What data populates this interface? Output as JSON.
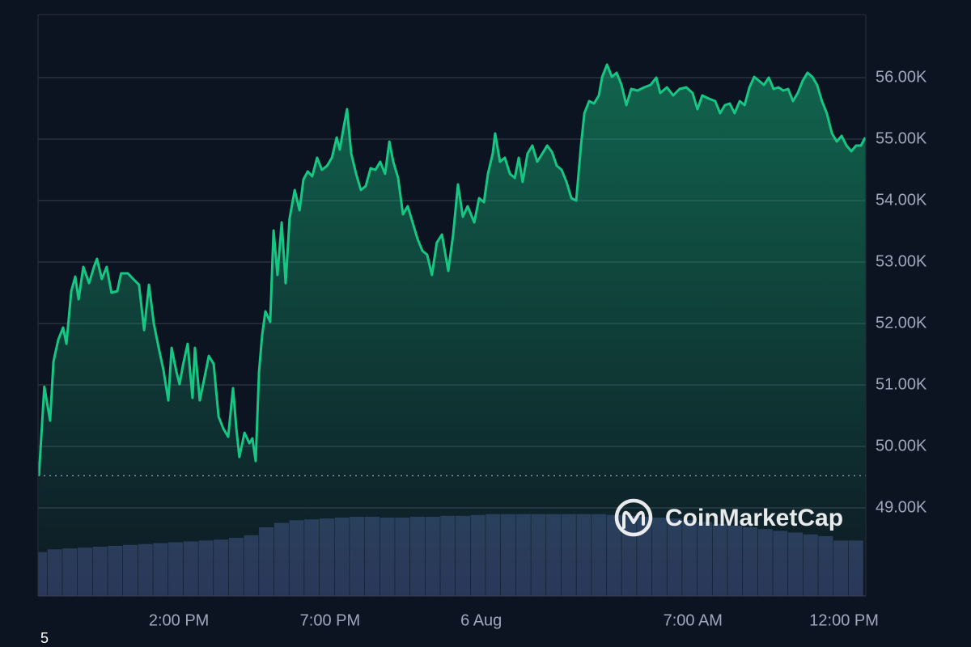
{
  "chart_data": {
    "type": "line",
    "x": [
      9.37,
      9.55,
      9.74,
      9.85,
      10.01,
      10.17,
      10.28,
      10.44,
      10.57,
      10.68,
      10.84,
      11.03,
      11.19,
      11.29,
      11.45,
      11.61,
      11.77,
      11.96,
      12.09,
      12.31,
      12.49,
      12.68,
      12.85,
      13.01,
      13.17,
      13.33,
      13.49,
      13.65,
      13.76,
      13.92,
      14.02,
      14.13,
      14.29,
      14.45,
      14.53,
      14.69,
      14.83,
      14.99,
      15.15,
      15.31,
      15.47,
      15.63,
      15.79,
      15.9,
      16.0,
      16.17,
      16.33,
      16.43,
      16.54,
      16.65,
      16.75,
      16.86,
      17.02,
      17.13,
      17.26,
      17.4,
      17.53,
      17.66,
      17.83,
      17.99,
      18.12,
      18.26,
      18.41,
      18.57,
      18.73,
      18.9,
      19.06,
      19.22,
      19.32,
      19.46,
      19.56,
      19.7,
      19.86,
      20.02,
      20.18,
      20.34,
      20.5,
      20.66,
      20.82,
      20.96,
      21.09,
      21.25,
      21.41,
      21.57,
      21.73,
      21.89,
      22.05,
      22.21,
      22.37,
      22.53,
      22.7,
      22.91,
      23.07,
      23.23,
      23.39,
      23.55,
      23.77,
      23.93,
      24.09,
      24.22,
      24.38,
      24.46,
      24.62,
      24.78,
      24.95,
      25.11,
      25.24,
      25.37,
      25.53,
      25.69,
      25.85,
      26.02,
      26.18,
      26.34,
      26.5,
      26.66,
      26.82,
      26.98,
      27.14,
      27.3,
      27.41,
      27.57,
      27.73,
      27.89,
      28.0,
      28.16,
      28.32,
      28.48,
      28.64,
      28.8,
      28.96,
      29.17,
      29.39,
      29.6,
      29.79,
      29.92,
      30.14,
      30.35,
      30.56,
      30.78,
      30.99,
      31.15,
      31.31,
      31.53,
      31.74,
      31.9,
      32.06,
      32.22,
      32.38,
      32.55,
      32.71,
      32.87,
      33.03,
      33.19,
      33.35,
      33.51,
      33.67,
      33.83,
      33.99,
      34.15,
      34.31,
      34.47,
      34.63,
      34.79,
      34.95,
      35.11,
      35.27,
      35.43,
      35.6,
      35.76,
      35.92,
      36.08,
      36.24,
      36.4,
      36.56,
      36.7
    ],
    "values": [
      49525,
      50973,
      50420,
      51380,
      51736,
      51934,
      51670,
      52526,
      52763,
      52394,
      52921,
      52657,
      52921,
      53052,
      52723,
      52921,
      52500,
      52526,
      52816,
      52816,
      52723,
      52630,
      51894,
      52630,
      51999,
      51604,
      51236,
      50749,
      51604,
      51210,
      51012,
      51315,
      51670,
      50789,
      51604,
      50749,
      51078,
      51473,
      51341,
      50486,
      50289,
      50157,
      50947,
      50289,
      49828,
      50223,
      50052,
      50131,
      49762,
      51210,
      51802,
      52197,
      52026,
      53513,
      52789,
      53644,
      52657,
      53710,
      54171,
      53842,
      54342,
      54474,
      54395,
      54697,
      54500,
      54566,
      54697,
      55026,
      54829,
      55224,
      55487,
      54763,
      54434,
      54171,
      54237,
      54526,
      54500,
      54632,
      54434,
      54960,
      54632,
      54368,
      53776,
      53908,
      53644,
      53381,
      53184,
      53118,
      52789,
      53315,
      53447,
      52855,
      53447,
      54263,
      53737,
      53908,
      53644,
      54039,
      53973,
      54434,
      54763,
      55092,
      54632,
      54697,
      54434,
      54368,
      54697,
      54302,
      54763,
      54895,
      54632,
      54763,
      54895,
      54789,
      54566,
      54500,
      54302,
      54039,
      53999,
      54895,
      55421,
      55618,
      55579,
      55710,
      56013,
      56211,
      56013,
      56079,
      55881,
      55553,
      55816,
      55789,
      55842,
      55881,
      56000,
      55750,
      55842,
      55710,
      55816,
      55842,
      55750,
      55487,
      55710,
      55658,
      55618,
      55421,
      55553,
      55579,
      55421,
      55618,
      55553,
      55842,
      56013,
      55947,
      55881,
      56000,
      55816,
      55842,
      55789,
      55816,
      55618,
      55750,
      55947,
      56079,
      56013,
      55881,
      55618,
      55421,
      55092,
      54960,
      55053,
      54895,
      54802,
      54895,
      54895,
      55026
    ],
    "color": "#16c784",
    "reference_line": 49525,
    "xlim": [
      9.34,
      36.72
    ],
    "ylim": [
      47566,
      57026
    ],
    "xticks": [
      {
        "value": 14,
        "label": "2:00 PM"
      },
      {
        "value": 19,
        "label": "7:00 PM"
      },
      {
        "value": 24,
        "label": "6 Aug"
      },
      {
        "value": 31,
        "label": "7:00 AM"
      },
      {
        "value": 36,
        "label": "12:00 PM"
      }
    ],
    "yticks": [
      {
        "value": 49000,
        "label": "49.00K"
      },
      {
        "value": 50000,
        "label": "50.00K"
      },
      {
        "value": 51000,
        "label": "51.00K"
      },
      {
        "value": 52000,
        "label": "52.00K"
      },
      {
        "value": 53000,
        "label": "53.00K"
      },
      {
        "value": 54000,
        "label": "54.00K"
      },
      {
        "value": 55000,
        "label": "55.00K"
      },
      {
        "value": 56000,
        "label": "56.00K"
      }
    ],
    "grid": true,
    "volume": {
      "x": [
        9.4,
        9.9,
        10.4,
        10.9,
        11.4,
        11.9,
        12.4,
        12.9,
        13.4,
        13.9,
        14.4,
        14.9,
        15.4,
        15.9,
        16.4,
        16.9,
        17.4,
        17.9,
        18.4,
        18.9,
        19.4,
        19.9,
        20.4,
        20.9,
        21.4,
        21.9,
        22.4,
        22.9,
        23.4,
        23.9,
        24.4,
        24.9,
        25.4,
        25.9,
        26.4,
        26.9,
        27.4,
        27.9,
        28.4,
        28.9,
        29.4,
        29.9,
        30.4,
        30.9,
        31.4,
        31.9,
        32.4,
        32.9,
        33.4,
        33.9,
        34.4,
        34.9,
        35.4,
        35.9,
        36.4
      ],
      "values": [
        50,
        53,
        54,
        55,
        56,
        57,
        58,
        59,
        60,
        61,
        62,
        63,
        64,
        66,
        69,
        78,
        83,
        86,
        87,
        88,
        89,
        90,
        90,
        89,
        89,
        90,
        90,
        91,
        91,
        92,
        93,
        93,
        93,
        93,
        93,
        93,
        93,
        93,
        92,
        91,
        90,
        89,
        88,
        86,
        84,
        82,
        80,
        78,
        76,
        74,
        72,
        70,
        68,
        63,
        63
      ],
      "color": "#2b3458",
      "ylim": [
        0,
        100
      ]
    },
    "watermark": "CoinMarketCap",
    "corner_label": "5"
  }
}
